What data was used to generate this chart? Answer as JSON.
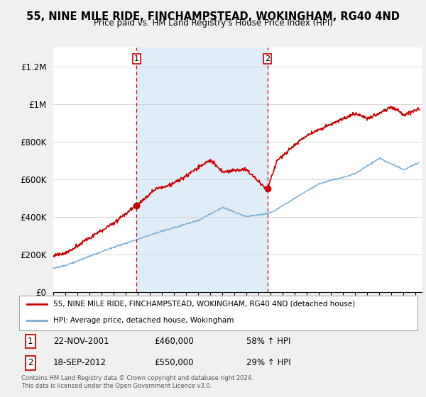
{
  "title": "55, NINE MILE RIDE, FINCHAMPSTEAD, WOKINGHAM, RG40 4ND",
  "subtitle": "Price paid vs. HM Land Registry's House Price Index (HPI)",
  "ylabel_ticks": [
    "£0",
    "£200K",
    "£400K",
    "£600K",
    "£800K",
    "£1M",
    "£1.2M"
  ],
  "ytick_values": [
    0,
    200000,
    400000,
    600000,
    800000,
    1000000,
    1200000
  ],
  "ylim": [
    0,
    1300000
  ],
  "xlim_start": 1995.0,
  "xlim_end": 2025.5,
  "red_color": "#cc0000",
  "blue_color": "#7aadd4",
  "shading_color": "#deedf8",
  "vline_color": "#cc0000",
  "transaction1": {
    "year": 2001.9,
    "price": 460000,
    "label": "1",
    "date": "22-NOV-2001",
    "hpi_pct": "58%"
  },
  "transaction2": {
    "year": 2012.72,
    "price": 550000,
    "label": "2",
    "date": "18-SEP-2012",
    "hpi_pct": "29%"
  },
  "legend_label_red": "55, NINE MILE RIDE, FINCHAMPSTEAD, WOKINGHAM, RG40 4ND (detached house)",
  "legend_label_blue": "HPI: Average price, detached house, Wokingham",
  "footer": "Contains HM Land Registry data © Crown copyright and database right 2024.\nThis data is licensed under the Open Government Licence v3.0.",
  "background_color": "#f0f0f0",
  "plot_bg_color": "#ffffff"
}
